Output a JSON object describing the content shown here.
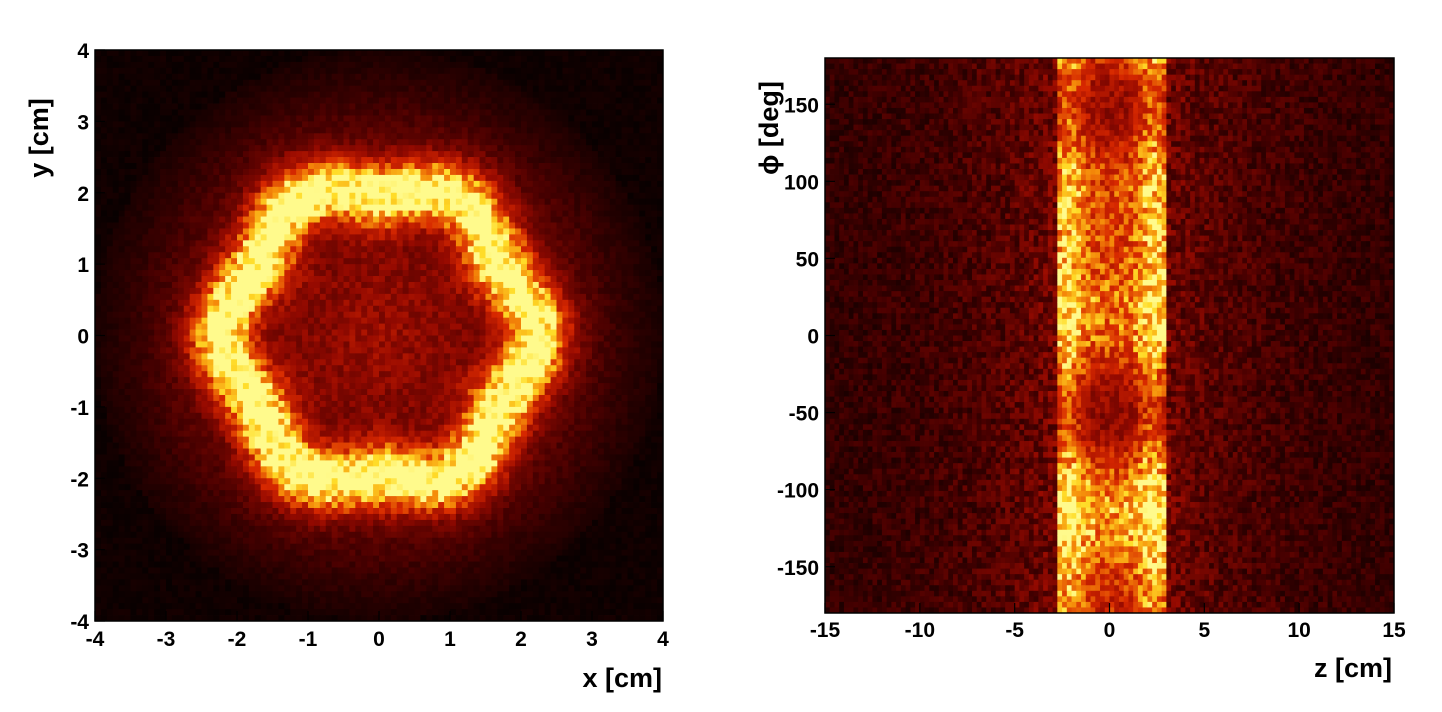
{
  "colors": {
    "background": "#000000",
    "low": "#5a0000",
    "mid": "#d82000",
    "high": "#ff9a10",
    "peak": "#fff25a"
  },
  "chart_data": [
    {
      "type": "heatmap",
      "xlabel": "x [cm]",
      "ylabel": "y [cm]",
      "xlim": [
        -4,
        4
      ],
      "ylim": [
        -4,
        4
      ],
      "xticks": [
        -4,
        -3,
        -2,
        -1,
        0,
        1,
        2,
        3,
        4
      ],
      "yticks": [
        -4,
        -3,
        -2,
        -1,
        0,
        1,
        2,
        3,
        4
      ],
      "bins": [
        96,
        96
      ],
      "colormap": "black-red-yellow",
      "grid": false,
      "distribution": {
        "shape": "ring",
        "ring_radius": 2.1,
        "ring_width": 0.45,
        "disk_radius": 4.0,
        "lobes": 6,
        "center_intensity": 0.3,
        "ring_intensity": 1.0
      }
    },
    {
      "type": "heatmap",
      "xlabel": "z [cm]",
      "ylabel": "ϕ [deg]",
      "xlim": [
        -15,
        15
      ],
      "ylim": [
        -180,
        180
      ],
      "xticks": [
        -15,
        -10,
        -5,
        0,
        5,
        10,
        15
      ],
      "yticks": [
        -150,
        -100,
        -50,
        0,
        50,
        100,
        150
      ],
      "bins": [
        120,
        100
      ],
      "colormap": "black-red-yellow",
      "grid": false,
      "distribution": {
        "shape": "band",
        "band_z_range": [
          -2.8,
          2.9
        ],
        "band_edge_bright": true,
        "background_intensity": 0.12
      }
    }
  ]
}
